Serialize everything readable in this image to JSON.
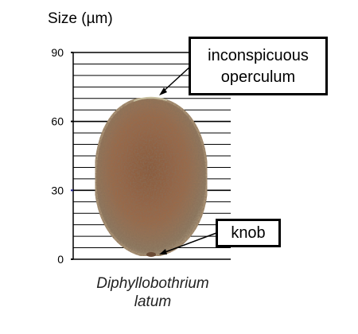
{
  "figure": {
    "size_title": "Size (µm)",
    "species_line1": "Diphyllobothrium",
    "species_line2": "latum",
    "axis": {
      "ticks": [
        "90",
        "60",
        "30",
        "0"
      ],
      "tick_values": [
        90,
        60,
        30,
        0
      ],
      "range": [
        0,
        90
      ],
      "minor_step": 5
    },
    "callouts": {
      "operculum_line1": "inconspicuous",
      "operculum_line2": "operculum",
      "knob": "knob"
    },
    "colors": {
      "egg_fill": "#9a6a4a",
      "egg_rim": "#a08a70",
      "grid": "#000000",
      "axis_tick_30": "#1a1a8c"
    }
  }
}
